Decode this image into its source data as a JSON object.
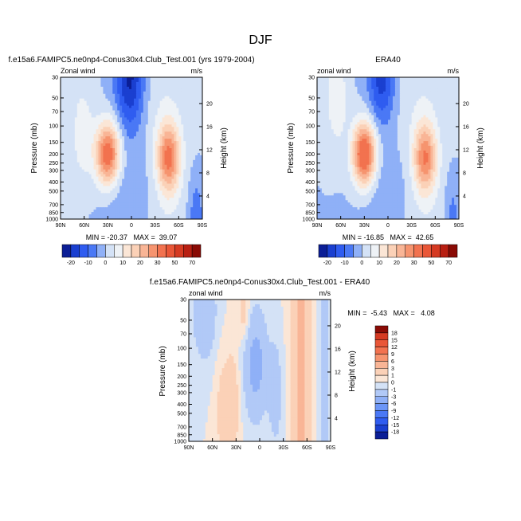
{
  "figure": {
    "title": "DJF"
  },
  "colors": {
    "blue_scale": [
      "#0b1e96",
      "#1a3fd0",
      "#2f5cf0",
      "#4a78f5",
      "#6c96f7",
      "#8fb0f7",
      "#b1c9f7",
      "#d4e2f6",
      "#eef2f6"
    ],
    "red_scale": [
      "#fbe6d6",
      "#fbd1b7",
      "#f9b596",
      "#f6946f",
      "#f2724f",
      "#e95637",
      "#d53a22",
      "#b81f12",
      "#8a0b05"
    ]
  },
  "chart_data": [
    {
      "type": "heatmap",
      "title": "f.e15a6.FAMIPC5.ne0np4-Conus30x4.Club_Test.001 (yrs 1979-2004)",
      "left_label": "Zonal wind",
      "right_label": "m/s",
      "ylabel": "Pressure (mb)",
      "y2label": "Height (km)",
      "x_ticks": [
        "90N",
        "60N",
        "30N",
        "0",
        "30S",
        "60S",
        "90S"
      ],
      "y_ticks": [
        "30",
        "50",
        "70",
        "100",
        "150",
        "200",
        "250",
        "300",
        "400",
        "500",
        "700",
        "850",
        "1000"
      ],
      "y2_ticks": [
        "20",
        "16",
        "12",
        "8",
        "4"
      ],
      "min": -20.37,
      "max": 39.07,
      "stats_label": "MIN = -20.37   MAX =  39.07",
      "colorbar": {
        "orientation": "horizontal",
        "tick_labels": [
          "-20",
          "-10",
          "0",
          "10",
          "20",
          "30",
          "50",
          "70"
        ]
      }
    },
    {
      "type": "heatmap",
      "title": "ERA40",
      "left_label": "zonal wind",
      "right_label": "m/s",
      "ylabel": "Pressure (mb)",
      "y2label": "Height (km)",
      "x_ticks": [
        "90N",
        "60N",
        "30N",
        "0",
        "30S",
        "60S",
        "90S"
      ],
      "y_ticks": [
        "30",
        "50",
        "70",
        "100",
        "150",
        "200",
        "250",
        "300",
        "400",
        "500",
        "700",
        "850",
        "1000"
      ],
      "y2_ticks": [
        "20",
        "16",
        "12",
        "8",
        "4"
      ],
      "min": -16.85,
      "max": 42.65,
      "stats_label": "MIN = -16.85   MAX =  42.65",
      "colorbar": {
        "orientation": "horizontal",
        "tick_labels": [
          "-20",
          "-10",
          "0",
          "10",
          "20",
          "30",
          "50",
          "70"
        ]
      }
    },
    {
      "type": "heatmap",
      "title": "f.e15a6.FAMIPC5.ne0np4-Conus30x4.Club_Test.001 - ERA40",
      "left_label": "zonal wind",
      "right_label": "m/s",
      "ylabel": "Pressure (mb)",
      "y2label": "Height (km)",
      "x_ticks": [
        "90N",
        "60N",
        "30N",
        "0",
        "30S",
        "60S",
        "90S"
      ],
      "y_ticks": [
        "30",
        "50",
        "70",
        "100",
        "150",
        "200",
        "250",
        "300",
        "400",
        "500",
        "700",
        "850",
        "1000"
      ],
      "y2_ticks": [
        "20",
        "16",
        "12",
        "8",
        "4"
      ],
      "min": -5.43,
      "max": 4.08,
      "stats_label": "MIN =  -5.43   MAX =   4.08",
      "colorbar": {
        "orientation": "vertical",
        "tick_labels": [
          "18",
          "15",
          "12",
          "9",
          "6",
          "3",
          "1",
          "0",
          "-1",
          "-3",
          "-6",
          "-9",
          "-12",
          "-15",
          "-18"
        ]
      }
    }
  ]
}
